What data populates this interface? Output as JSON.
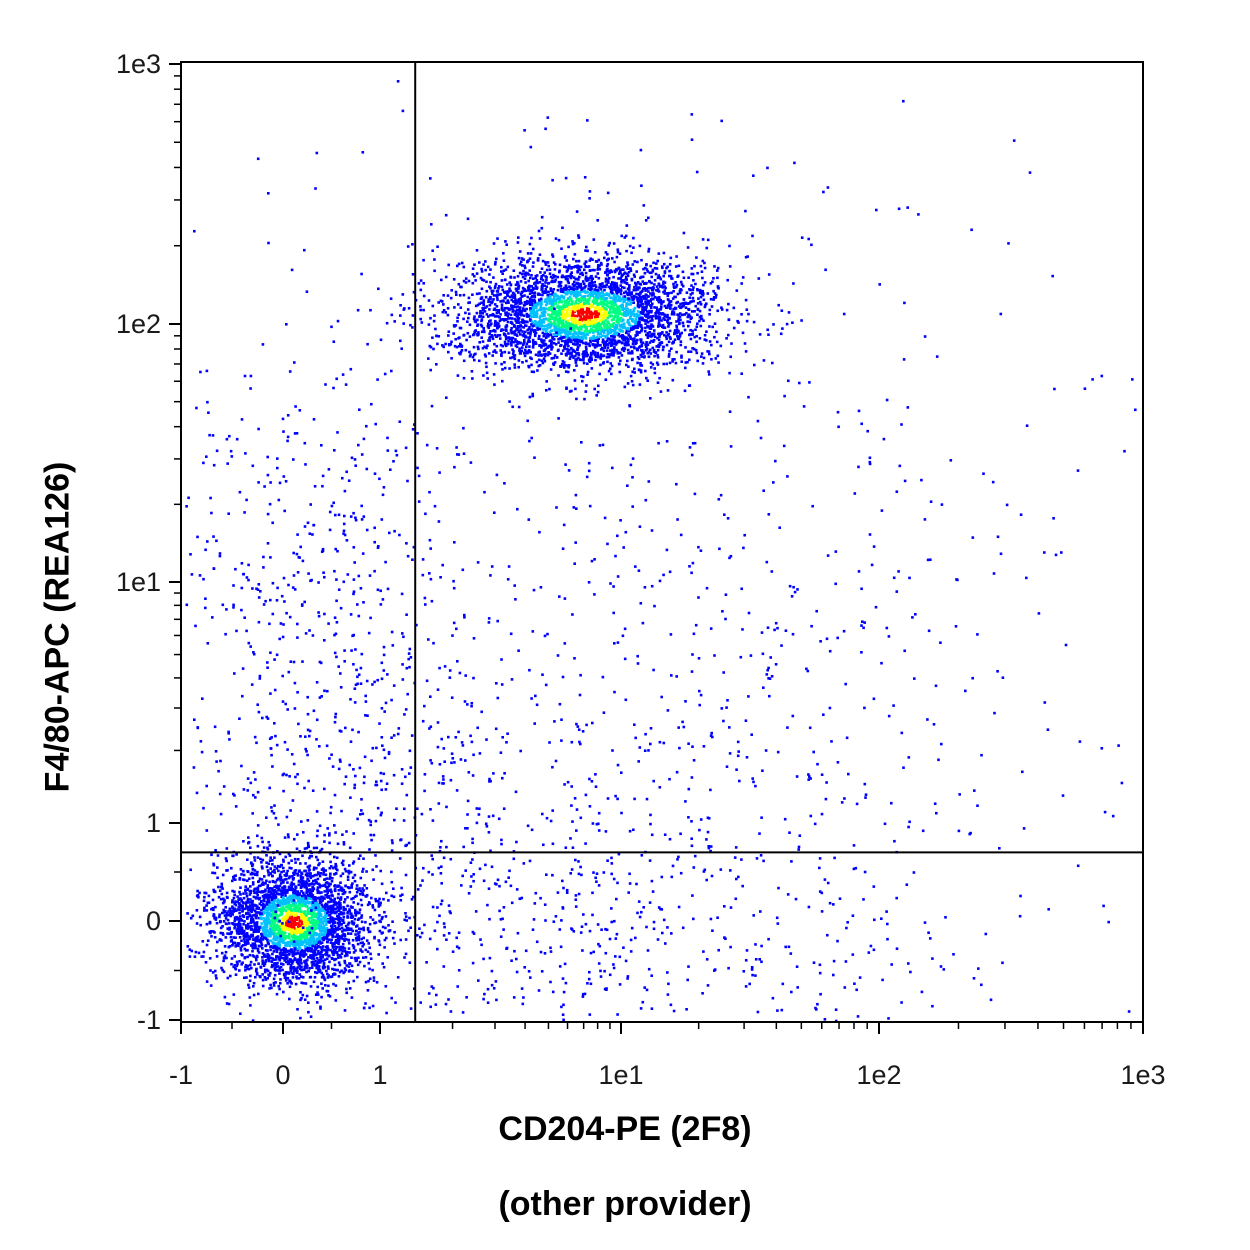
{
  "chart_data": {
    "type": "scatter",
    "subtype": "flow-cytometry density dot plot",
    "xlabel": "CD204-PE (2F8)",
    "xlabel_note": "(other provider)",
    "ylabel": "F4/80-APC (REA126)",
    "x_scale": "biexponential",
    "y_scale": "biexponential",
    "xlim": [
      -1,
      1000
    ],
    "ylim": [
      -1,
      1000
    ],
    "x_tick_labels": [
      "-1",
      "0",
      "1",
      "1e1",
      "1e2",
      "1e3"
    ],
    "y_tick_labels": [
      "1e3",
      "1e2",
      "1e1",
      "1",
      "0",
      "-1"
    ],
    "gates": {
      "vertical_at_x": 1.4,
      "horizontal_at_y": 0.7
    },
    "density_colormap": [
      "#0000ff",
      "#00c0ff",
      "#00ff80",
      "#ffff00",
      "#ff0000"
    ],
    "populations": [
      {
        "center": [
          0.1,
          0.0
        ],
        "spread": [
          0.28,
          0.22
        ],
        "weight": 0.34,
        "density": "high"
      },
      {
        "center": [
          7,
          110
        ],
        "spread": [
          0.45,
          0.2
        ],
        "weight": 0.4,
        "density": "high"
      },
      {
        "center": [
          0.3,
          10
        ],
        "spread": [
          0.25,
          0.55
        ],
        "weight": 0.03,
        "density": "low"
      },
      {
        "center": [
          15,
          5
        ],
        "spread": [
          0.9,
          1.1
        ],
        "weight": 0.1,
        "density": "low"
      },
      {
        "center": [
          6,
          0.1
        ],
        "spread": [
          0.8,
          0.4
        ],
        "weight": 0.08,
        "density": "low"
      },
      {
        "center": [
          0.5,
          1.5
        ],
        "spread": [
          0.35,
          0.7
        ],
        "weight": 0.05,
        "density": "low"
      }
    ]
  }
}
